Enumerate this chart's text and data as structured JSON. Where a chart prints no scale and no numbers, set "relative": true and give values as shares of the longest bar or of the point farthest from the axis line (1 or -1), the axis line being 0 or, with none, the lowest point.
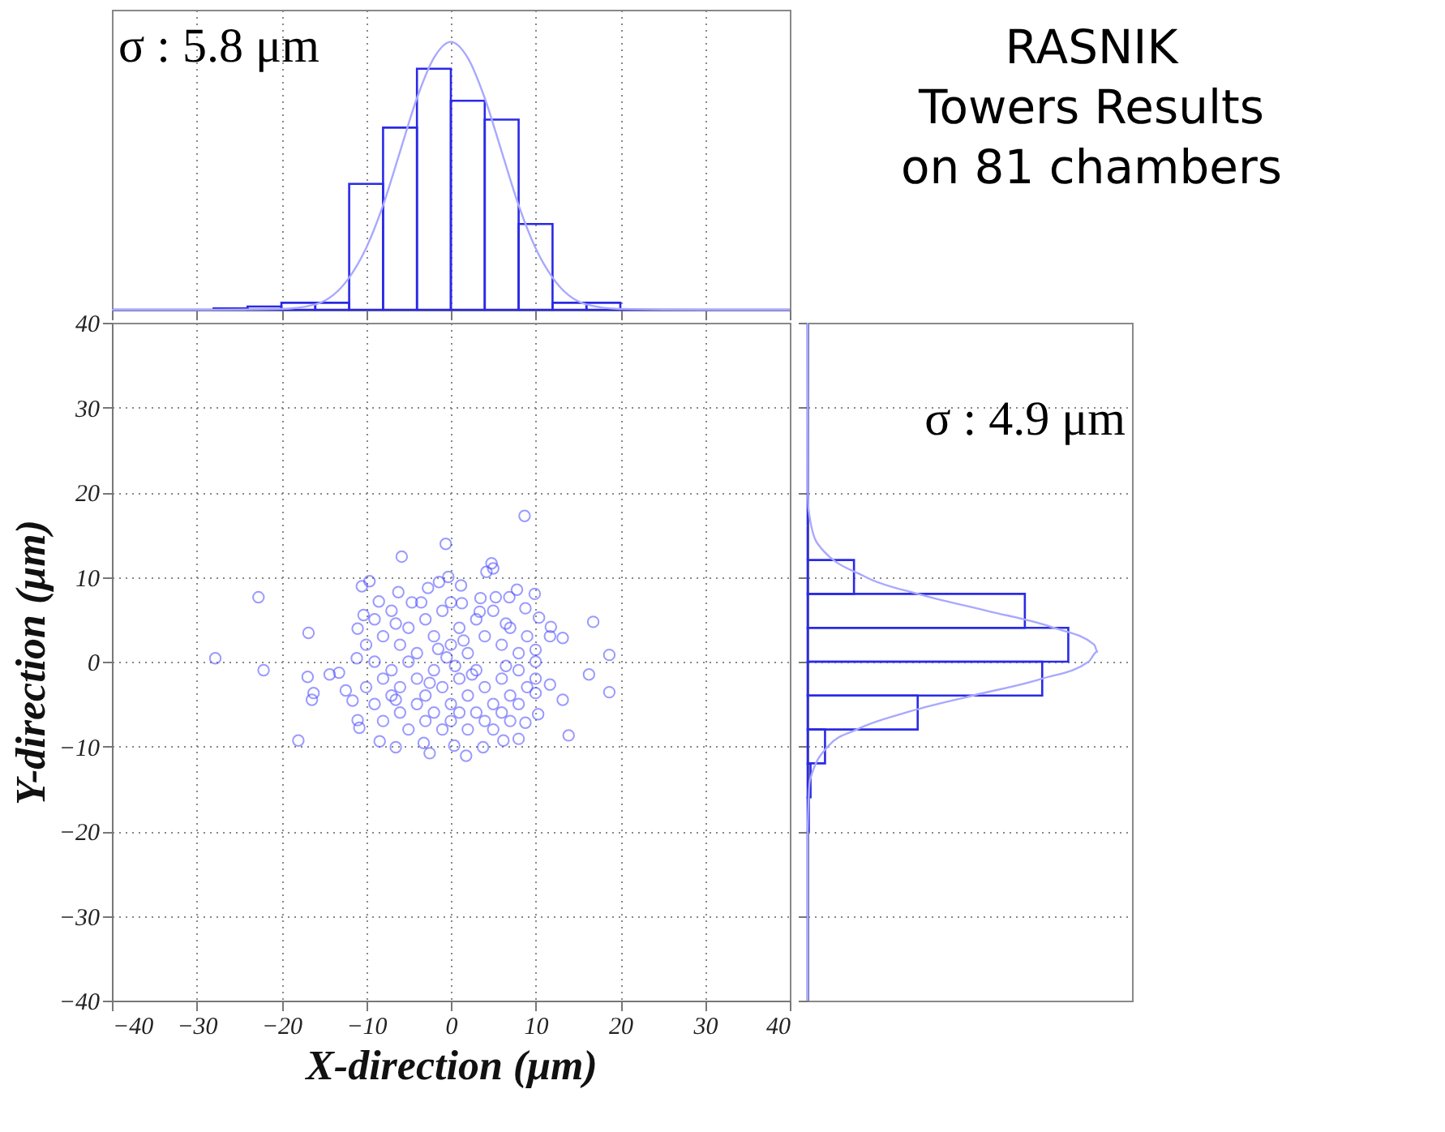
{
  "chart_data": [
    {
      "type": "histogram",
      "relative": true,
      "bins": [
        -40,
        -36,
        -32,
        -28,
        -24,
        -20,
        -16,
        -12,
        -8,
        -4,
        0,
        4,
        8,
        12,
        16,
        20,
        24,
        28,
        32,
        36,
        40
      ],
      "values": [
        0,
        0,
        0,
        0.005,
        0.012,
        0.026,
        0.026,
        0.47,
        0.68,
        0.9,
        0.78,
        0.71,
        0.32,
        0.026,
        0.026,
        0,
        0,
        0,
        0,
        0
      ],
      "color": "#2a2ae6",
      "xlim": [
        -40,
        40
      ],
      "xticks": [
        -40,
        -30,
        -20,
        -10,
        0,
        10,
        20,
        30,
        40
      ],
      "tick_labels": false,
      "grid": "x",
      "annotations": [
        "σ : 5.8 μm"
      ],
      "series": [
        {
          "type": "line",
          "color": "#a8a8ff",
          "x": [
            -40,
            -30,
            -20,
            -16,
            -12,
            -10,
            -8,
            -6,
            -4,
            -2,
            0,
            2,
            4,
            6,
            8,
            10,
            12,
            16,
            20,
            30,
            40
          ],
          "values": [
            0,
            0,
            0.003,
            0.02,
            0.12,
            0.23,
            0.39,
            0.59,
            0.79,
            0.94,
            1,
            0.94,
            0.79,
            0.59,
            0.39,
            0.23,
            0.12,
            0.02,
            0.003,
            0,
            0
          ]
        }
      ]
    },
    {
      "type": "other",
      "annotations": [
        "RASNIK",
        "Towers Results",
        "on 81 chambers"
      ]
    },
    {
      "type": "scatter",
      "color": "#4848ff",
      "marker": "circle",
      "xlabel": "X-direction  (μm)",
      "ylabel": "Y-direction  (μm)",
      "xlim": [
        -40,
        40
      ],
      "ylim": [
        -40,
        40
      ],
      "xticks": [
        -40,
        -30,
        -20,
        -10,
        0,
        10,
        20,
        30,
        40
      ],
      "yticks": [
        -40,
        -30,
        -20,
        -10,
        0,
        10,
        20,
        30,
        40
      ],
      "grid": true,
      "x": [
        8.7,
        -0.6,
        -5.8,
        4.8,
        5,
        4.2,
        -22.7,
        -27.8,
        -22.1,
        -16.8,
        -16.9,
        -16.2,
        -16.4,
        -18,
        -14.3,
        -13.2,
        -12.4,
        -11.6,
        16.8,
        18.7,
        16.3,
        18.7,
        13.9,
        13.2,
        11.8,
        11.7,
        13.2,
        10.3,
        -2.5,
        1.8,
        -10.5,
        -9.6,
        1.2,
        -0.3,
        -1.4,
        -2.7,
        7.8,
        9.9,
        5.3,
        6.9,
        -8.5,
        -6.2,
        -4.6,
        1.3,
        3.4,
        8.8,
        10.4,
        11.7,
        -10.3,
        -11,
        -11.1,
        -11,
        -10.8,
        -8.4,
        -6.5,
        -3.2,
        0.4,
        3.8,
        6.2,
        8,
        8.8,
        10,
        10,
        -9,
        -8,
        -7,
        -6,
        -5,
        -4,
        -3,
        -2,
        -1,
        0,
        1,
        2,
        3,
        4,
        5,
        6,
        7,
        8,
        9,
        -9,
        -8,
        -7,
        -6,
        -5,
        -4,
        -3,
        -2,
        -1,
        0,
        1,
        2,
        3,
        4,
        5,
        6,
        7,
        8,
        9,
        -9,
        -8,
        -7,
        -6,
        -5,
        -4,
        -3,
        -2,
        -1,
        0,
        1,
        2,
        3,
        4,
        5,
        6,
        7,
        8,
        -10,
        -10,
        10,
        10,
        -0.5,
        0.5,
        -1.5,
        1.5,
        -2.5,
        2.5,
        -6.5,
        6.5,
        -6.5,
        6.5,
        -3.5,
        3.5,
        0
      ],
      "values": [
        17.2,
        13.9,
        12.4,
        11.6,
        11,
        10.6,
        7.6,
        0.4,
        -1,
        3.4,
        -1.8,
        -3.7,
        -4.5,
        -9.3,
        -1.5,
        -1.3,
        -3.4,
        -4.6,
        4.7,
        0.8,
        -1.5,
        -3.6,
        -8.7,
        2.8,
        4.1,
        -2.7,
        -4.5,
        -6.2,
        -10.8,
        -11.1,
        8.9,
        9.5,
        9,
        10,
        9.4,
        8.7,
        8.5,
        8,
        7.6,
        7.6,
        7.1,
        8.2,
        7,
        6.9,
        5.9,
        6.3,
        5.2,
        3,
        5.5,
        3.9,
        0.4,
        -6.9,
        -7.8,
        -9.4,
        -10.1,
        -9.6,
        -9.9,
        -10.1,
        -9.3,
        -9.1,
        -7.2,
        -3.7,
        1.4,
        5,
        3,
        6,
        2,
        4,
        1,
        5,
        3,
        6,
        2,
        4,
        1,
        5,
        3,
        6,
        2,
        4,
        1,
        3,
        0,
        -2,
        -1,
        -3,
        0,
        -2,
        -4,
        -1,
        -3,
        -5,
        -2,
        -4,
        -1,
        -3,
        -5,
        -2,
        -4,
        -1,
        -3,
        -5,
        -7,
        -4,
        -6,
        -8,
        -5,
        -7,
        -6,
        -8,
        -7,
        -6,
        -8,
        -6,
        -7,
        -8,
        -6,
        -7,
        -5,
        2,
        -3,
        0,
        -2,
        0.5,
        -0.5,
        1.5,
        2.5,
        -2.5,
        -1.5,
        4.5,
        4.5,
        -4.5,
        -0.5,
        7,
        7.5,
        7
      ]
    },
    {
      "type": "histogram",
      "orientation": "horizontal",
      "relative": true,
      "bins": [
        -40,
        -36,
        -32,
        -28,
        -24,
        -20,
        -16,
        -12,
        -8,
        -4,
        0,
        4,
        8,
        12,
        16,
        20,
        24,
        28,
        32,
        36,
        40
      ],
      "values": [
        0,
        0,
        0,
        0,
        0,
        0.004,
        0.01,
        0.06,
        0.38,
        0.81,
        0.9,
        0.75,
        0.16,
        0,
        0,
        0,
        0,
        0,
        0,
        0
      ],
      "color": "#2a2ae6",
      "ylim": [
        -40,
        40
      ],
      "yticks": [
        -40,
        -30,
        -20,
        -10,
        0,
        10,
        20,
        30,
        40
      ],
      "tick_labels": false,
      "grid": "y",
      "annotations": [
        "σ : 4.9 μm"
      ],
      "series": [
        {
          "type": "line",
          "color": "#a8a8ff",
          "x": [
            -40,
            -20,
            -14,
            -10,
            -8,
            -6,
            -4,
            -2,
            0,
            1.2,
            2,
            4,
            6,
            8,
            10,
            14,
            18,
            20,
            40
          ],
          "values": [
            0,
            0,
            0.008,
            0.07,
            0.17,
            0.34,
            0.57,
            0.81,
            0.97,
            1,
            0.99,
            0.85,
            0.62,
            0.38,
            0.2,
            0.033,
            0.003,
            0.001,
            0
          ]
        }
      ]
    }
  ]
}
